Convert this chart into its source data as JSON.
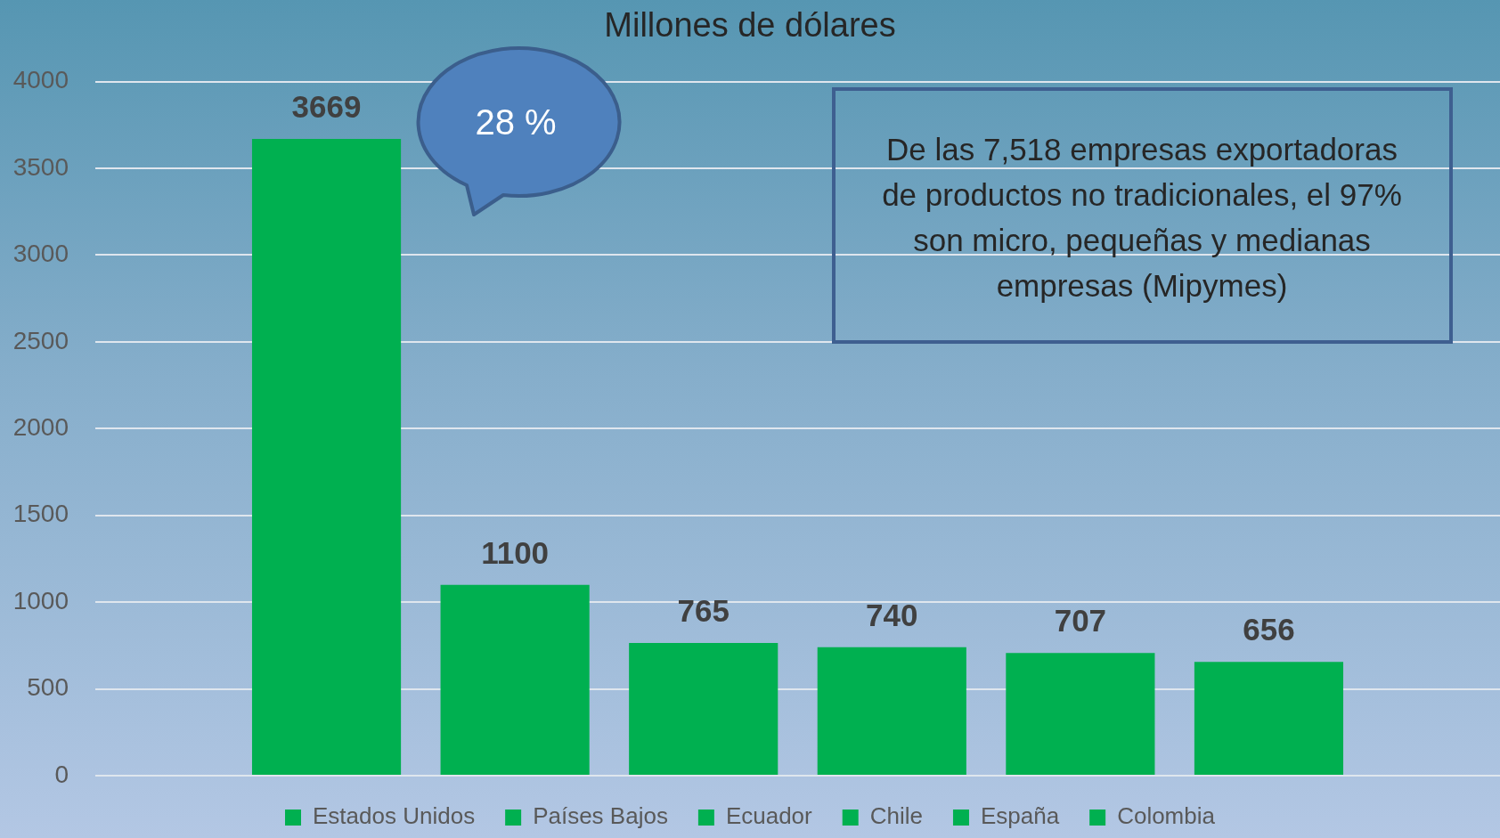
{
  "chart_data": {
    "type": "bar",
    "title": "Millones de dólares",
    "categories": [
      null
    ],
    "series": [
      {
        "name": "Estados Unidos",
        "color": "#00b050",
        "values": [
          3669
        ]
      },
      {
        "name": "Países Bajos",
        "color": "#00b050",
        "values": [
          1100
        ]
      },
      {
        "name": "Ecuador",
        "color": "#00b050",
        "values": [
          765
        ]
      },
      {
        "name": "Chile",
        "color": "#00b050",
        "values": [
          740
        ]
      },
      {
        "name": "España",
        "color": "#00b050",
        "values": [
          707
        ]
      },
      {
        "name": "Colombia",
        "color": "#00b050",
        "values": [
          656
        ]
      }
    ],
    "ylim": [
      0,
      4000
    ],
    "yticks": [
      0,
      500,
      1000,
      1500,
      2000,
      2500,
      3000,
      3500,
      4000
    ],
    "grid": "y",
    "legend": "bottom",
    "data_labels": true,
    "annotations": [
      "28 %",
      "De las 7,518 empresas exportadoras de productos no tradicionales, el 97% son micro, pequeñas y medianas empresas (Mipymes)"
    ]
  }
}
